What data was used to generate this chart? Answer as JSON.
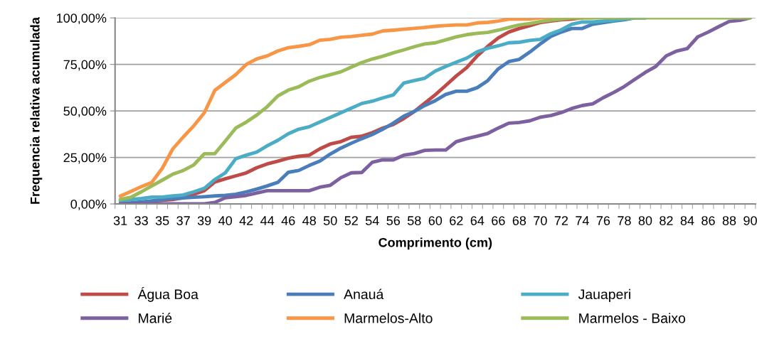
{
  "chart_data": {
    "type": "line",
    "xlabel": "Comprimento (cm)",
    "ylabel": "Frequencia relativa acumulada",
    "categories": [
      "31",
      null,
      "33",
      null,
      "35",
      null,
      "37",
      null,
      "39",
      null,
      "40",
      null,
      "42",
      null,
      "44",
      null,
      "46",
      null,
      "48",
      null,
      "50",
      null,
      "52",
      null,
      "54",
      null,
      "56",
      null,
      "58",
      null,
      "60",
      null,
      "62",
      null,
      "64",
      null,
      "66",
      null,
      "68",
      null,
      "70",
      null,
      "72",
      null,
      "74",
      null,
      "76",
      null,
      "78",
      null,
      "80",
      null,
      "82",
      null,
      "84",
      null,
      "86",
      null,
      "88",
      null,
      "90"
    ],
    "ylim": [
      0,
      100
    ],
    "yticks": [
      {
        "value": 0,
        "label": "0,00%"
      },
      {
        "value": 25,
        "label": "25,00%"
      },
      {
        "value": 50,
        "label": "50,00%"
      },
      {
        "value": 75,
        "label": "75,00%"
      },
      {
        "value": 100,
        "label": "100,00%"
      }
    ],
    "grid": "y",
    "legend": "bottom",
    "marker": "none",
    "line_style": "solid",
    "series": [
      {
        "name": "Água Boa",
        "color": "#be4b48",
        "values": [
          null,
          null,
          null,
          1.4,
          2,
          2.4,
          3.3,
          5.2,
          7.1,
          11.8,
          13.5,
          15.1,
          16.7,
          19.5,
          21.5,
          23,
          24.6,
          25.6,
          26.2,
          29.6,
          32.2,
          33.5,
          35.8,
          36.4,
          38.3,
          40.8,
          42.7,
          45.9,
          49.7,
          54.2,
          58.7,
          63.7,
          68.8,
          73.3,
          79.6,
          84.7,
          89.2,
          92.4,
          94.3,
          95.8,
          97.5,
          98.3,
          99,
          99.4,
          100,
          null,
          null,
          null,
          null,
          null,
          null,
          null,
          null,
          null,
          null,
          null,
          null,
          null,
          null,
          null,
          null
        ]
      },
      {
        "name": "Anauá",
        "color": "#4a7ebb",
        "values": [
          0.4,
          0.6,
          1.1,
          1.7,
          2.4,
          2.9,
          3.2,
          3.6,
          3.9,
          4.3,
          4.6,
          5.2,
          6.5,
          8,
          9.7,
          11.6,
          17,
          18,
          20.7,
          23,
          26.8,
          30,
          32.6,
          35.1,
          37.3,
          40.2,
          43.4,
          47.2,
          49.7,
          52.9,
          55.5,
          58.9,
          60.6,
          60.6,
          62.5,
          66.3,
          72.6,
          76.5,
          77.7,
          81.6,
          86,
          90,
          92.4,
          94.3,
          94.3,
          96.6,
          97.5,
          98.3,
          99,
          100,
          100,
          null,
          null,
          null,
          null,
          null,
          null,
          null,
          null,
          null,
          null
        ]
      },
      {
        "name": "Jauaperi",
        "color": "#4bacc6",
        "values": [
          1.7,
          2.4,
          2.9,
          3.7,
          3.7,
          4.3,
          4.8,
          6.5,
          8.4,
          13.1,
          16.7,
          24.3,
          26.2,
          27.9,
          31.3,
          34.2,
          37.7,
          40.2,
          41.5,
          44,
          46.5,
          49,
          51.5,
          54,
          55.2,
          57,
          58.6,
          65,
          66.3,
          67.6,
          71.4,
          73.9,
          76.2,
          78.4,
          81.8,
          83.7,
          85,
          86.6,
          86.9,
          87.9,
          88.5,
          91.5,
          93.6,
          96.6,
          97.8,
          97.8,
          98.3,
          98.7,
          99.4,
          100,
          100,
          null,
          null,
          null,
          null,
          null,
          null,
          null,
          null,
          null,
          null
        ]
      },
      {
        "name": "Marié",
        "color": "#7d60a0",
        "values": [
          0,
          0,
          0,
          0,
          0,
          0,
          0,
          0,
          0,
          0.8,
          3.3,
          3.9,
          4.6,
          5.9,
          7.1,
          7.1,
          7.1,
          7.1,
          7.1,
          9,
          10,
          14.1,
          16.7,
          16.9,
          22.4,
          23.7,
          23.7,
          26.2,
          27.1,
          28.8,
          29,
          29,
          33.5,
          35.1,
          36.4,
          37.9,
          40.8,
          43.4,
          43.8,
          44.7,
          46.6,
          47.5,
          49.1,
          51.3,
          52.9,
          53.8,
          57.1,
          59.9,
          63.1,
          66.9,
          70.7,
          73.9,
          79.6,
          82.2,
          83.5,
          89.8,
          92.4,
          95.3,
          98.1,
          98.7,
          100
        ]
      },
      {
        "name": "Marmelos-Alto",
        "color": "#f79646",
        "values": [
          4.2,
          6.7,
          9.3,
          11.6,
          19.2,
          29.6,
          36,
          42,
          49,
          61,
          65.3,
          69.5,
          75,
          78,
          79.6,
          82.2,
          84,
          84.7,
          85.6,
          88,
          88.5,
          89.6,
          90,
          90.7,
          91.3,
          93,
          93.4,
          93.9,
          94.4,
          94.9,
          95.5,
          95.9,
          96.2,
          96.2,
          97.3,
          97.6,
          98.3,
          99.4,
          99.4,
          99.4,
          100,
          100,
          100,
          100,
          100,
          100,
          null,
          null,
          null,
          null,
          null,
          null,
          null,
          null,
          null,
          null,
          null,
          null,
          null,
          null,
          null
        ]
      },
      {
        "name": "Marmelos - Baixo",
        "color": "#9bbb59",
        "values": [
          2.4,
          3.6,
          6.5,
          9.7,
          12.8,
          16,
          18,
          21,
          27,
          27,
          33.8,
          40.8,
          44,
          47.8,
          52.3,
          58,
          61.2,
          63,
          66,
          68,
          69.5,
          71,
          73.5,
          76,
          77.9,
          79.4,
          81.2,
          82.8,
          84.5,
          86,
          86.6,
          88.2,
          89.8,
          91,
          91.7,
          92.2,
          93.4,
          94.9,
          96.2,
          97,
          98,
          98.8,
          99.4,
          100,
          100,
          100,
          100,
          100,
          100,
          100,
          100,
          100,
          100,
          100,
          100,
          100,
          100,
          100,
          100,
          100,
          100
        ]
      }
    ]
  }
}
